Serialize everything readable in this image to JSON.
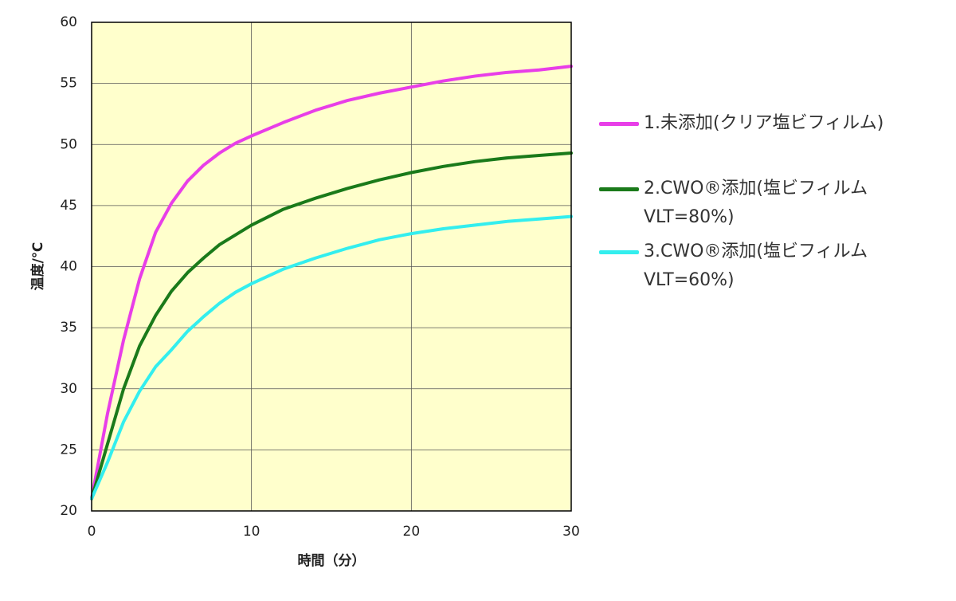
{
  "chart_data": {
    "type": "line",
    "x_label": "時間（分）",
    "y_label": "温度/℃",
    "x": [
      0,
      1,
      2,
      3,
      4,
      5,
      6,
      7,
      8,
      9,
      10,
      12,
      14,
      16,
      18,
      20,
      22,
      24,
      26,
      28,
      30
    ],
    "series": [
      {
        "name": "1.未添加(クリア塩ビフィルム)",
        "color": "#e83ee8",
        "values": [
          21,
          28,
          34,
          39,
          42.8,
          45.2,
          47,
          48.3,
          49.3,
          50.1,
          50.7,
          51.8,
          52.8,
          53.6,
          54.2,
          54.7,
          55.2,
          55.6,
          55.9,
          56.1,
          56.4
        ]
      },
      {
        "name": "2.CWO®添加(塩ビフィルム VLT=80%)",
        "color": "#1a7a1a",
        "values": [
          21,
          25.5,
          30,
          33.5,
          36,
          38,
          39.5,
          40.7,
          41.8,
          42.6,
          43.4,
          44.7,
          45.6,
          46.4,
          47.1,
          47.7,
          48.2,
          48.6,
          48.9,
          49.1,
          49.3
        ]
      },
      {
        "name": "3.CWO®添加(塩ビフィルム VLT=60%)",
        "color": "#33eeee",
        "values": [
          21,
          24,
          27.3,
          29.8,
          31.8,
          33.2,
          34.7,
          35.9,
          37,
          37.9,
          38.6,
          39.8,
          40.7,
          41.5,
          42.2,
          42.7,
          43.1,
          43.4,
          43.7,
          43.9,
          44.1
        ]
      }
    ],
    "xlim": [
      0,
      30
    ],
    "xticks": [
      0,
      10,
      20,
      30
    ],
    "ylim": [
      20,
      60
    ],
    "yticks": [
      20,
      25,
      30,
      35,
      40,
      45,
      50,
      55,
      60
    ],
    "grid": true,
    "legend": "right"
  }
}
